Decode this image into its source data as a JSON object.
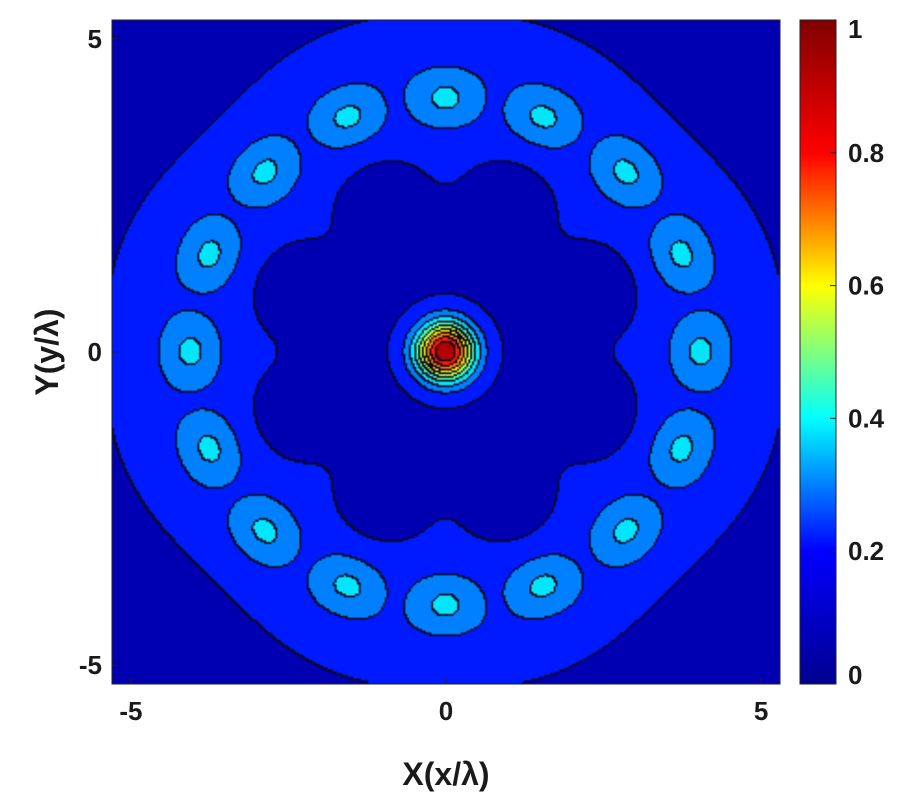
{
  "chart_data": {
    "type": "heatmap",
    "subtype": "filled-contour",
    "title": "",
    "xlabel": "X(x/λ)",
    "ylabel": "Y(y/λ)",
    "xlim": [
      -5.3,
      5.3
    ],
    "ylim": [
      -5.3,
      5.3
    ],
    "x_ticks": [
      -5,
      0,
      5
    ],
    "y_ticks": [
      -5,
      0,
      5
    ],
    "x_tick_labels": [
      "-5",
      "0",
      "5"
    ],
    "y_tick_labels": [
      "-5",
      "0",
      "5"
    ],
    "colorbar": {
      "range": [
        0,
        1
      ],
      "ticks": [
        0,
        0.2,
        0.4,
        0.6,
        0.8,
        1
      ],
      "tick_labels": [
        "0",
        "0.2",
        "0.4",
        "0.6",
        "0.8",
        "1"
      ],
      "colormap": "jet",
      "stops": [
        "#00008f",
        "#0000ff",
        "#00ffff",
        "#ffff00",
        "#ff0000",
        "#800000"
      ]
    },
    "contour_levels": [
      0.0,
      0.1,
      0.2,
      0.3,
      0.4,
      0.5,
      0.6,
      0.7,
      0.8,
      0.9
    ],
    "field_description": "central peak of 1.0 at origin; inner ring of 8 low lobes at r≈2.8; outer ring of 16 lobes (~0.2-0.3) at r≈4",
    "central_peak": {
      "x": 0,
      "y": 0,
      "value": 1.0
    },
    "inner_lobes": {
      "count": 8,
      "radius": 2.8,
      "value": 0.02
    },
    "outer_lobes": {
      "count": 16,
      "radius": 4.05,
      "value": 0.25
    }
  }
}
